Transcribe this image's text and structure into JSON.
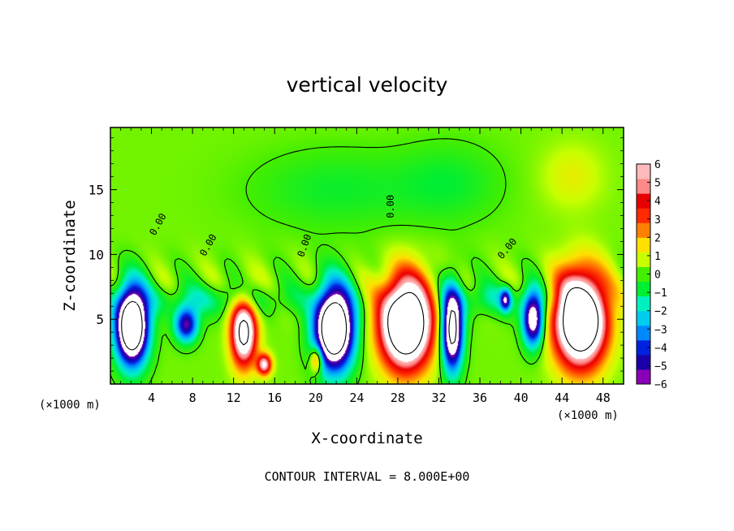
{
  "chart_data": {
    "type": "heatmap",
    "title": "vertical velocity",
    "xlabel": "X-coordinate",
    "ylabel": "Z-coordinate",
    "x_unit": "(×1000 m)",
    "x_ticks": [
      4,
      8,
      12,
      16,
      20,
      24,
      28,
      32,
      36,
      40,
      44,
      48
    ],
    "y_ticks": [
      5,
      10,
      15
    ],
    "xlim": [
      0,
      50
    ],
    "ylim": [
      0,
      19.8
    ],
    "contour_interval_text": "CONTOUR INTERVAL = 8.000E+00",
    "contour_labels": [
      "0.00",
      "0.00",
      "0.00",
      "0.00",
      "0.00"
    ],
    "colorbar": {
      "ticks": [
        6,
        5,
        4,
        3,
        2,
        1,
        0,
        -1,
        -2,
        -3,
        -4,
        -5,
        -6
      ],
      "tick_labels": [
        "6",
        "5",
        "4",
        "3",
        "2",
        "1",
        "0",
        "−1",
        "−2",
        "−3",
        "−4",
        "−5",
        "−6"
      ],
      "range": [
        -6,
        6
      ],
      "colors": [
        "#8a00b8",
        "#1a00a8",
        "#0022e0",
        "#0088ff",
        "#00ccee",
        "#00f0c0",
        "#00ee33",
        "#44ee00",
        "#c8ff00",
        "#ffe000",
        "#ff8000",
        "#ff2a00",
        "#e80000",
        "#ff8888",
        "#ffbbbb"
      ]
    },
    "background_value": 0.3,
    "features": [
      {
        "kind": "updraft",
        "x": 13.0,
        "z": 4.0,
        "sx": 1.2,
        "sz": 2.5,
        "amp": 9
      },
      {
        "kind": "updraft",
        "x": 28.8,
        "z": 4.7,
        "sx": 2.4,
        "sz": 3.3,
        "amp": 13
      },
      {
        "kind": "updraft",
        "x": 45.8,
        "z": 5.0,
        "sx": 2.4,
        "sz": 3.4,
        "amp": 13
      },
      {
        "kind": "updraft",
        "x": 15.0,
        "z": 1.5,
        "sx": 0.7,
        "sz": 0.8,
        "amp": 6
      },
      {
        "kind": "updraft",
        "x": 20.1,
        "z": 1.9,
        "sx": 0.6,
        "sz": 1.0,
        "amp": 4
      },
      {
        "kind": "downdraft",
        "x": 2.1,
        "z": 4.5,
        "sx": 1.5,
        "sz": 2.8,
        "amp": -13
      },
      {
        "kind": "downdraft",
        "x": 7.4,
        "z": 4.6,
        "sx": 1.1,
        "sz": 1.3,
        "amp": -6
      },
      {
        "kind": "downdraft",
        "x": 21.8,
        "z": 4.3,
        "sx": 1.8,
        "sz": 3.0,
        "amp": -13
      },
      {
        "kind": "downdraft",
        "x": 33.3,
        "z": 4.2,
        "sx": 1.0,
        "sz": 3.0,
        "amp": -10
      },
      {
        "kind": "downdraft",
        "x": 41.2,
        "z": 5.0,
        "sx": 1.0,
        "sz": 2.0,
        "amp": -8
      },
      {
        "kind": "downdraft",
        "x": 38.5,
        "z": 6.5,
        "sx": 0.5,
        "sz": 0.8,
        "amp": -5
      },
      {
        "kind": "downdraft",
        "x": 10.5,
        "z": 6.5,
        "sx": 8.0,
        "sz": 1.2,
        "amp": -1.5
      },
      {
        "kind": "downdraft",
        "x": 37.0,
        "z": 6.5,
        "sx": 5.0,
        "sz": 1.2,
        "amp": -1.5
      },
      {
        "kind": "downdraft",
        "x": 22.0,
        "z": 15.0,
        "sx": 8.0,
        "sz": 3.0,
        "amp": -1.0
      },
      {
        "kind": "downdraft",
        "x": 33.0,
        "z": 15.5,
        "sx": 5.0,
        "sz": 3.0,
        "amp": -1.0
      },
      {
        "kind": "updraft",
        "x": 45.0,
        "z": 16.0,
        "sx": 3.0,
        "sz": 2.5,
        "amp": 1.0
      }
    ]
  }
}
